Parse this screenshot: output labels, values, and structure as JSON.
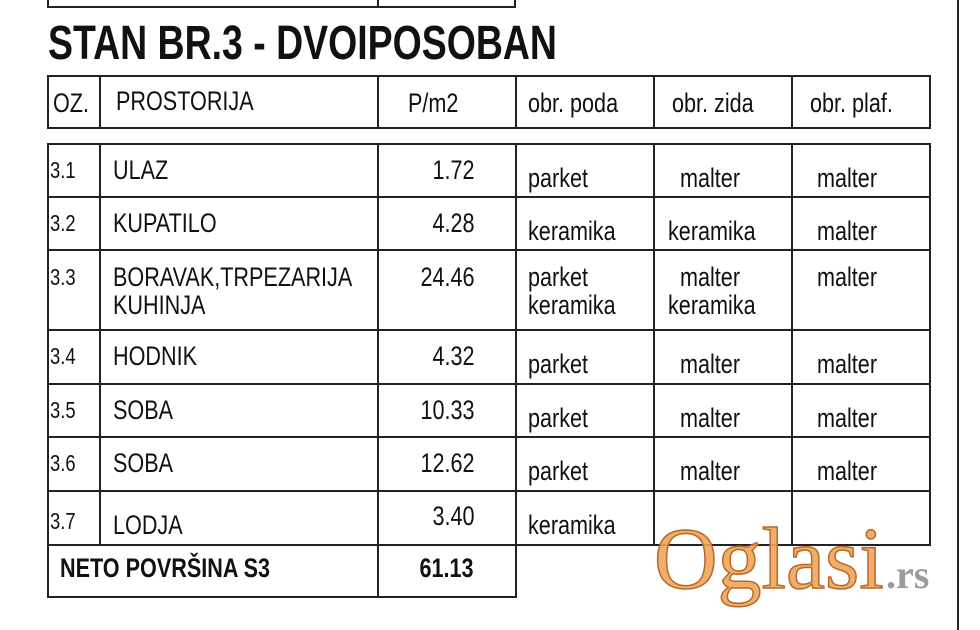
{
  "title": "STAN BR.3 - DVOIPOSOBAN",
  "header": [
    "OZ.",
    "PROSTORIJA",
    "P/m2",
    "obr. poda",
    "obr. zida",
    "obr. plaf."
  ],
  "rows": [
    {
      "oz": "3.1",
      "name": "ULAZ",
      "area": "1.72",
      "poda": "parket",
      "zida": "malter",
      "plaf": "malter"
    },
    {
      "oz": "3.2",
      "name": "KUPATILO",
      "area": "4.28",
      "poda": "keramika",
      "zida": "keramika",
      "plaf": "malter"
    },
    {
      "oz": "3.3",
      "name": "BORAVAK,TRPEZARIJA",
      "name2": "KUHINJA",
      "area": "24.46",
      "poda": "parket",
      "poda2": "keramika",
      "zida": "malter",
      "zida2": "keramika",
      "plaf": "malter"
    },
    {
      "oz": "3.4",
      "name": "HODNIK",
      "area": "4.32",
      "poda": "parket",
      "zida": "malter",
      "plaf": "malter"
    },
    {
      "oz": "3.5",
      "name": "SOBA",
      "area": "10.33",
      "poda": "parket",
      "zida": "malter",
      "plaf": "malter"
    },
    {
      "oz": "3.6",
      "name": "SOBA",
      "area": "12.62",
      "poda": "parket",
      "zida": "malter",
      "plaf": "malter"
    },
    {
      "oz": "3.7",
      "name": "LODJA",
      "area": "3.40",
      "poda": "keramika",
      "zida": "",
      "plaf": ""
    }
  ],
  "total": {
    "label": "NETO POVRŠINA S3",
    "value": "61.13"
  },
  "watermark": {
    "text": "Oglasi",
    "suffix": ".rs",
    "color": "#f0a55a",
    "suffix_color": "#8a8a8a"
  }
}
